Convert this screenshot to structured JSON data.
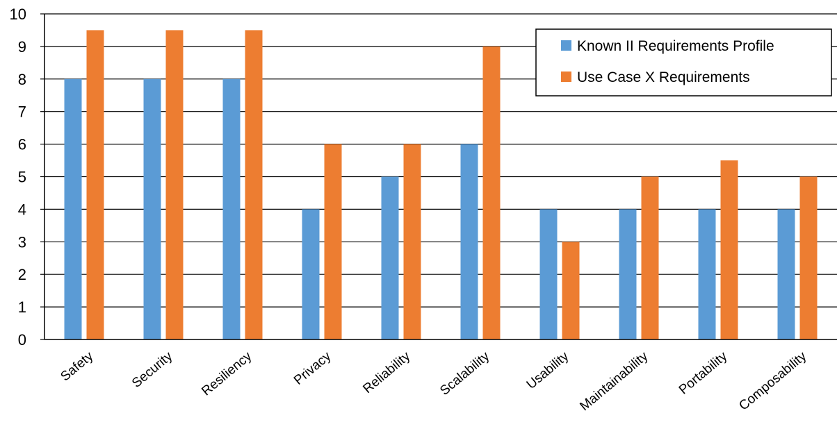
{
  "chart_data": {
    "type": "bar",
    "categories": [
      "Safety",
      "Security",
      "Resiliency",
      "Privacy",
      "Reliability",
      "Scalability",
      "Usability",
      "Maintainability",
      "Portability",
      "Composability"
    ],
    "series": [
      {
        "name": "Known II Requirements Profile",
        "values": [
          8,
          8,
          8,
          4,
          5,
          6,
          4,
          4,
          4,
          4
        ],
        "color": "#5B9BD5"
      },
      {
        "name": "Use Case X Requirements",
        "values": [
          9.5,
          9.5,
          9.5,
          6,
          6,
          9,
          3,
          5,
          5.5,
          5
        ],
        "color": "#ED7D31"
      }
    ],
    "ylim": [
      0,
      10
    ],
    "yticks": [
      0,
      1,
      2,
      3,
      4,
      5,
      6,
      7,
      8,
      9,
      10
    ],
    "grid": true,
    "legend_position": "top-right",
    "title": "",
    "xlabel": "",
    "ylabel": ""
  }
}
